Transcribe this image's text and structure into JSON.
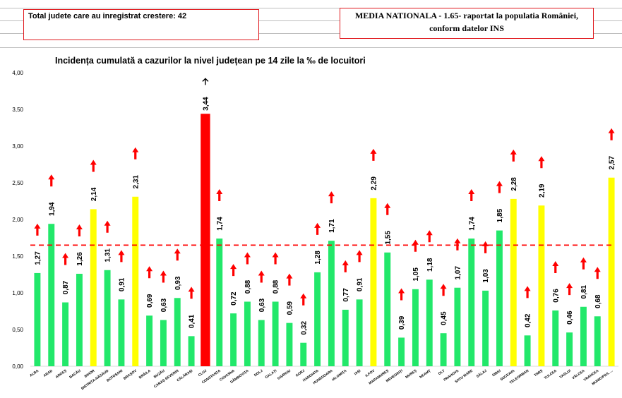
{
  "header": {
    "left_box_text": "Total judete care au inregistrat crestere: 42",
    "right_box_line1": "MEDIA NATIONALA - 1.65-  raportat la populatia României,",
    "right_box_line2": "conform datelor INS"
  },
  "colors": {
    "green": "#22e86a",
    "yellow": "#ffff00",
    "red": "#ff0000",
    "arrow": "#ff0000",
    "reference_line": "#ff0000",
    "box_border": "#e0191e"
  },
  "chart_data": {
    "type": "bar",
    "title": "Incidența cumulată a cazurilor la nivel județean pe 14 zile la ‰ de locuitori",
    "xlabel": "",
    "ylabel": "",
    "ylim": [
      0,
      4
    ],
    "yticks": [
      "0,00",
      "0,50",
      "1,00",
      "1,50",
      "2,00",
      "2,50",
      "3,00",
      "3,50",
      "4,00"
    ],
    "reference_value": 1.65,
    "legend": "none",
    "grid": false,
    "categories": [
      "ALBA",
      "ARAD",
      "ARGEȘ",
      "BACĂU",
      "BIHOR",
      "BISTRIȚA-NĂSĂUD",
      "BOTOȘANI",
      "BRAȘOV",
      "BRĂILA",
      "BUZĂU",
      "CARAȘ-SEVERIN",
      "CĂLĂRAȘI",
      "CLUJ",
      "CONSTANȚA",
      "COVASNA",
      "DÂMBOVIȚA",
      "DOLJ",
      "GALAȚI",
      "GIURGIU",
      "GORJ",
      "HARGHITA",
      "HUNEDOARA",
      "IALOMIȚA",
      "IAȘI",
      "ILFOV",
      "MARAMUREȘ",
      "MEHEDINȚI",
      "MUREȘ",
      "NEAMȚ",
      "OLT",
      "PRAHOVA",
      "SATU MARE",
      "SĂLAJ",
      "SIBIU",
      "SUCEAVA",
      "TELEORMAN",
      "TIMIȘ",
      "TULCEA",
      "VASLUI",
      "VÂLCEA",
      "VRANCEA",
      "MUNICIPIUL ..."
    ],
    "values": [
      1.27,
      1.94,
      0.87,
      1.26,
      2.14,
      1.31,
      0.91,
      2.31,
      0.69,
      0.63,
      0.93,
      0.41,
      3.44,
      1.74,
      0.72,
      0.88,
      0.63,
      0.88,
      0.59,
      0.32,
      1.28,
      1.71,
      0.77,
      0.91,
      2.29,
      1.55,
      0.39,
      1.05,
      1.18,
      0.45,
      1.07,
      1.74,
      1.03,
      1.85,
      2.28,
      0.42,
      2.19,
      0.76,
      0.46,
      0.81,
      0.68,
      2.57
    ],
    "value_labels": [
      "1,27",
      "1,94",
      "0,87",
      "1,26",
      "2,14",
      "1,31",
      "0,91",
      "2,31",
      "0,69",
      "0,63",
      "0,93",
      "0,41",
      "3,44",
      "1,74",
      "0,72",
      "0,88",
      "0,63",
      "0,88",
      "0,59",
      "0,32",
      "1,28",
      "1,71",
      "0,77",
      "0,91",
      "2,29",
      "1,55",
      "0,39",
      "1,05",
      "1,18",
      "0,45",
      "1,07",
      "1,74",
      "1,03",
      "1,85",
      "2,28",
      "0,42",
      "2,19",
      "0,76",
      "0,46",
      "0,81",
      "0,68",
      "2,57"
    ],
    "bar_colors": [
      "green",
      "green",
      "green",
      "green",
      "yellow",
      "green",
      "green",
      "yellow",
      "green",
      "green",
      "green",
      "green",
      "red",
      "green",
      "green",
      "green",
      "green",
      "green",
      "green",
      "green",
      "green",
      "green",
      "green",
      "green",
      "yellow",
      "green",
      "green",
      "green",
      "green",
      "green",
      "green",
      "green",
      "green",
      "green",
      "yellow",
      "green",
      "yellow",
      "green",
      "green",
      "green",
      "green",
      "yellow"
    ],
    "increase_arrows": [
      true,
      true,
      true,
      true,
      true,
      true,
      true,
      true,
      true,
      true,
      true,
      true,
      true,
      true,
      true,
      true,
      true,
      true,
      true,
      true,
      true,
      true,
      true,
      true,
      true,
      true,
      true,
      true,
      true,
      true,
      true,
      true,
      true,
      true,
      true,
      true,
      true,
      true,
      true,
      true,
      true,
      true
    ]
  }
}
